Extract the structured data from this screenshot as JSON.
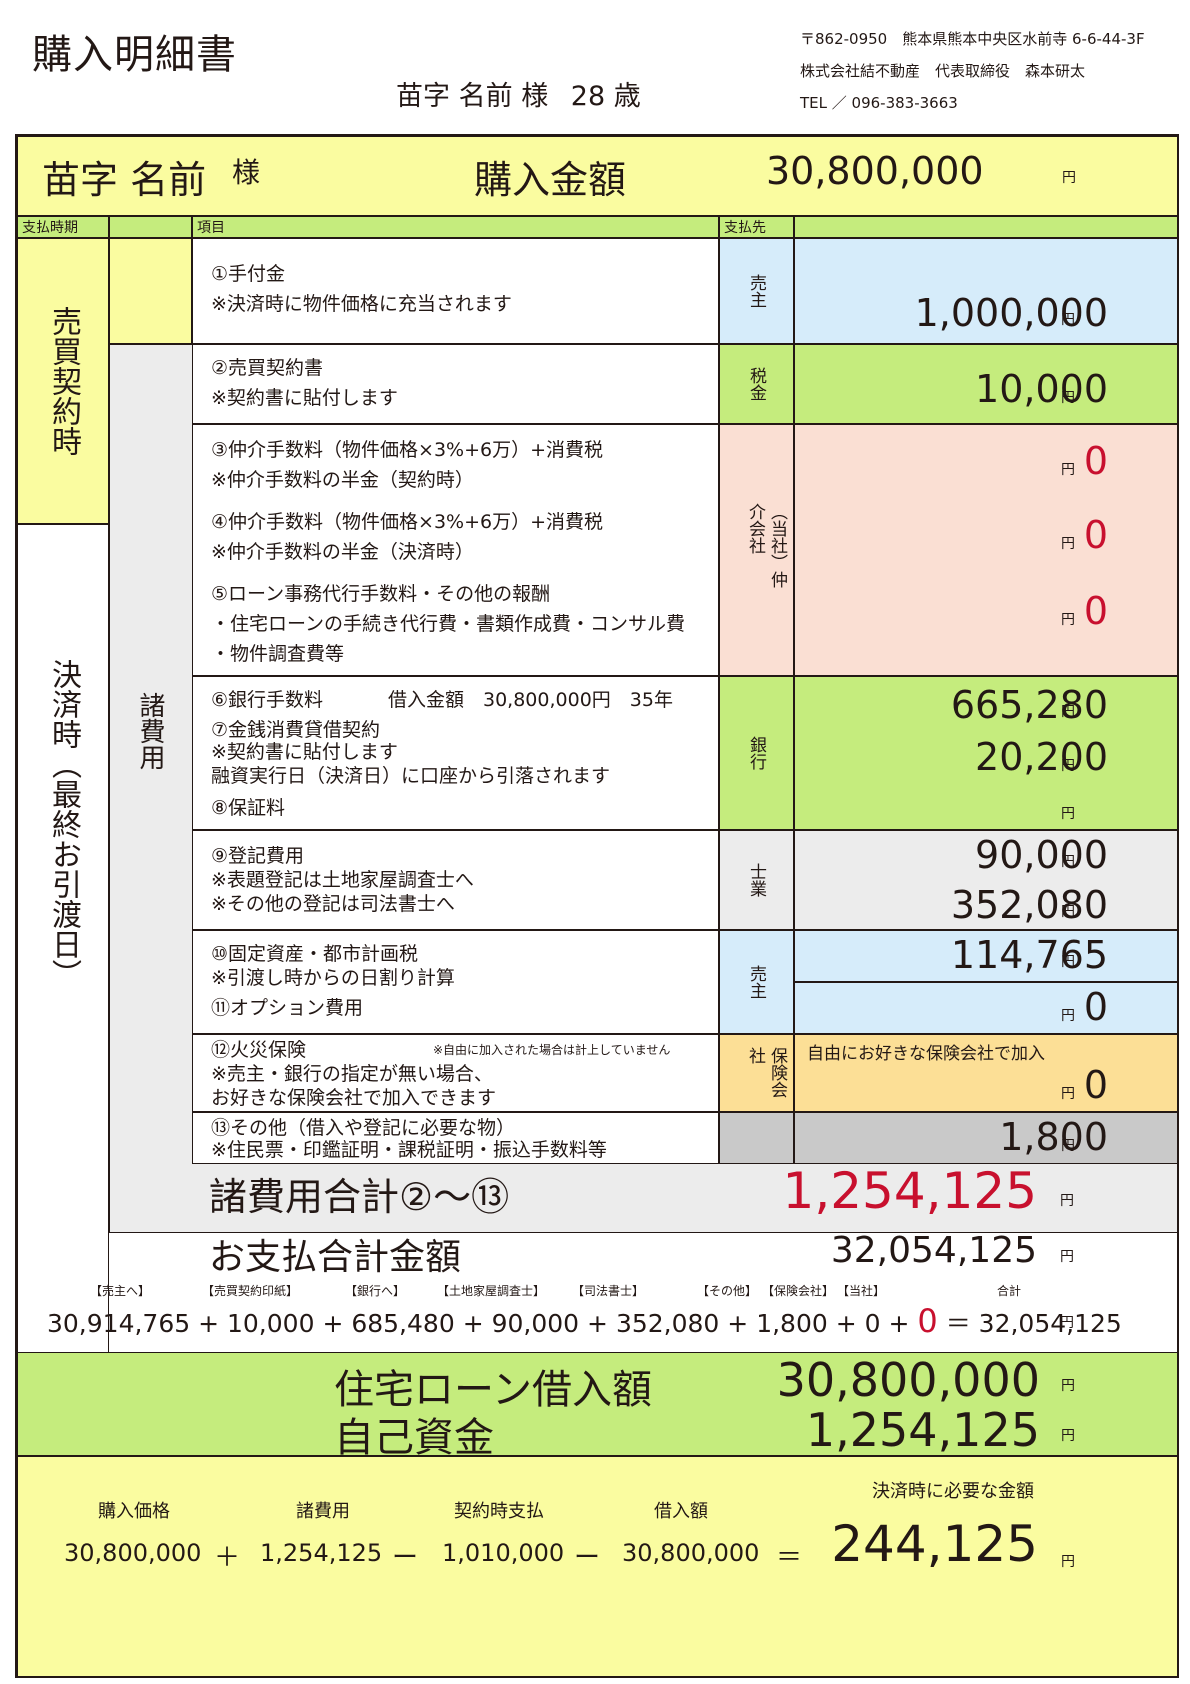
{
  "title": "購入明細書",
  "customer_line": {
    "name": "苗字 名前",
    "honorific": "様",
    "age": "28 歳"
  },
  "company": {
    "address": "〒862-0950　熊本県熊本中央区水前寺 6-6-44-3F",
    "name": "株式会社結不動産　代表取締役　森本研太",
    "tel": "TEL ／ 096-383-3663"
  },
  "header": {
    "name": "苗字 名前",
    "honorific": "様",
    "label": "購入金額",
    "amount": "30,800,000",
    "yen": "円"
  },
  "columns": {
    "period": "支払時期",
    "item": "項目",
    "payee": "支払先"
  },
  "periods": {
    "contract": "売買契約時",
    "settlement": "決済時（最終お引渡日）",
    "misc": "諸費用"
  },
  "rows": {
    "r1": {
      "line1": "①手付金",
      "line2": "※決済時に物件価格に充当されます",
      "payee": "売主",
      "amount": "1,000,000"
    },
    "r2": {
      "line1": "②売買契約書",
      "line2": "※契約書に貼付します",
      "payee": "税金",
      "amount": "10,000"
    },
    "r345": {
      "payee": "仲介会社",
      "payee_note": "（当社）",
      "r3a": "③仲介手数料（物件価格×3%+6万）+消費税",
      "r3b": "※仲介手数料の半金（契約時）",
      "amount3": "0",
      "r4a": "④仲介手数料（物件価格×3%+6万）+消費税",
      "r4b": "※仲介手数料の半金（決済時）",
      "amount4": "0",
      "r5a": "⑤ローン事務代行手数料・その他の報酬",
      "r5b": "・住宅ローンの手続き代行費・書類作成費・コンサル費",
      "r5c": "・物件調査費等",
      "amount5": "0"
    },
    "bank": {
      "r6": "⑥銀行手数料",
      "r6_loan": "借入金額　30,800,000円　35年",
      "r7a": "⑦金銭消費貸借契約",
      "r7b": "※契約書に貼付します",
      "r7c": "融資実行日（決済日）に口座から引落されます",
      "r8": "⑧保証料",
      "payee": "銀行",
      "amount6": "665,280",
      "amount7": "20,200"
    },
    "r9": {
      "line1": "⑨登記費用",
      "line2": "※表題登記は土地家屋調査士へ",
      "line3": "※その他の登記は司法書士へ",
      "payee": "士業",
      "amount_a": "90,000",
      "amount_b": "352,080"
    },
    "r10": {
      "line1": "⑩固定資産・都市計画税",
      "line2": "※引渡し時からの日割り計算",
      "line3": "⑪オプション費用",
      "payee": "売主",
      "amount10": "114,765",
      "amount11": "0"
    },
    "r12": {
      "line1": "⑫火災保険",
      "note": "※自由に加入された場合は計上していません",
      "line2": "※売主・銀行の指定が無い場合、",
      "line3": "お好きな保険会社で加入できます",
      "payee": "保険会社",
      "amount_note": "自由にお好きな保険会社で加入",
      "amount": "0"
    },
    "r13": {
      "line1": "⑬その他（借入や登記に必要な物）",
      "line2": "※住民票・印鑑証明・課税証明・振込手数料等",
      "amount": "1,800"
    }
  },
  "misc_total": {
    "label": "諸費用合計②〜⑬",
    "amount": "1,254,125"
  },
  "payment_total": {
    "label": "お支払合計金額",
    "amount": "32,054,125"
  },
  "breakdown": {
    "tags": [
      "【売主へ】",
      "【売買契約印紙】",
      "【銀行へ】",
      "【土地家屋調査士】",
      "【司法書士】",
      "【その他】",
      "【保険会社】",
      "【当社】",
      "合計"
    ],
    "values": [
      "30,914,765",
      "10,000",
      "685,480",
      "90,000",
      "352,080",
      "1,800",
      "0",
      "0",
      "32,054,125"
    ],
    "plus": "+",
    "equals": "＝"
  },
  "loan": {
    "loan_label": "住宅ローン借入額",
    "loan_amount": "30,800,000",
    "own_label": "自己資金",
    "own_amount": "1,254,125"
  },
  "final": {
    "labels": [
      "購入価格",
      "諸費用",
      "契約時支払",
      "借入額"
    ],
    "values": [
      "30,800,000",
      "1,254,125",
      "1,010,000",
      "30,800,000"
    ],
    "ops": [
      "＋",
      "ー",
      "ー",
      "＝"
    ],
    "result_label": "決済時に必要な金額",
    "result": "244,125"
  },
  "yen": "円",
  "colors": {
    "yellow": "#fafca0",
    "green": "#c5ec7d",
    "blue": "#d6ecfa",
    "pink": "#fadfd3",
    "red": "#c8102e"
  }
}
